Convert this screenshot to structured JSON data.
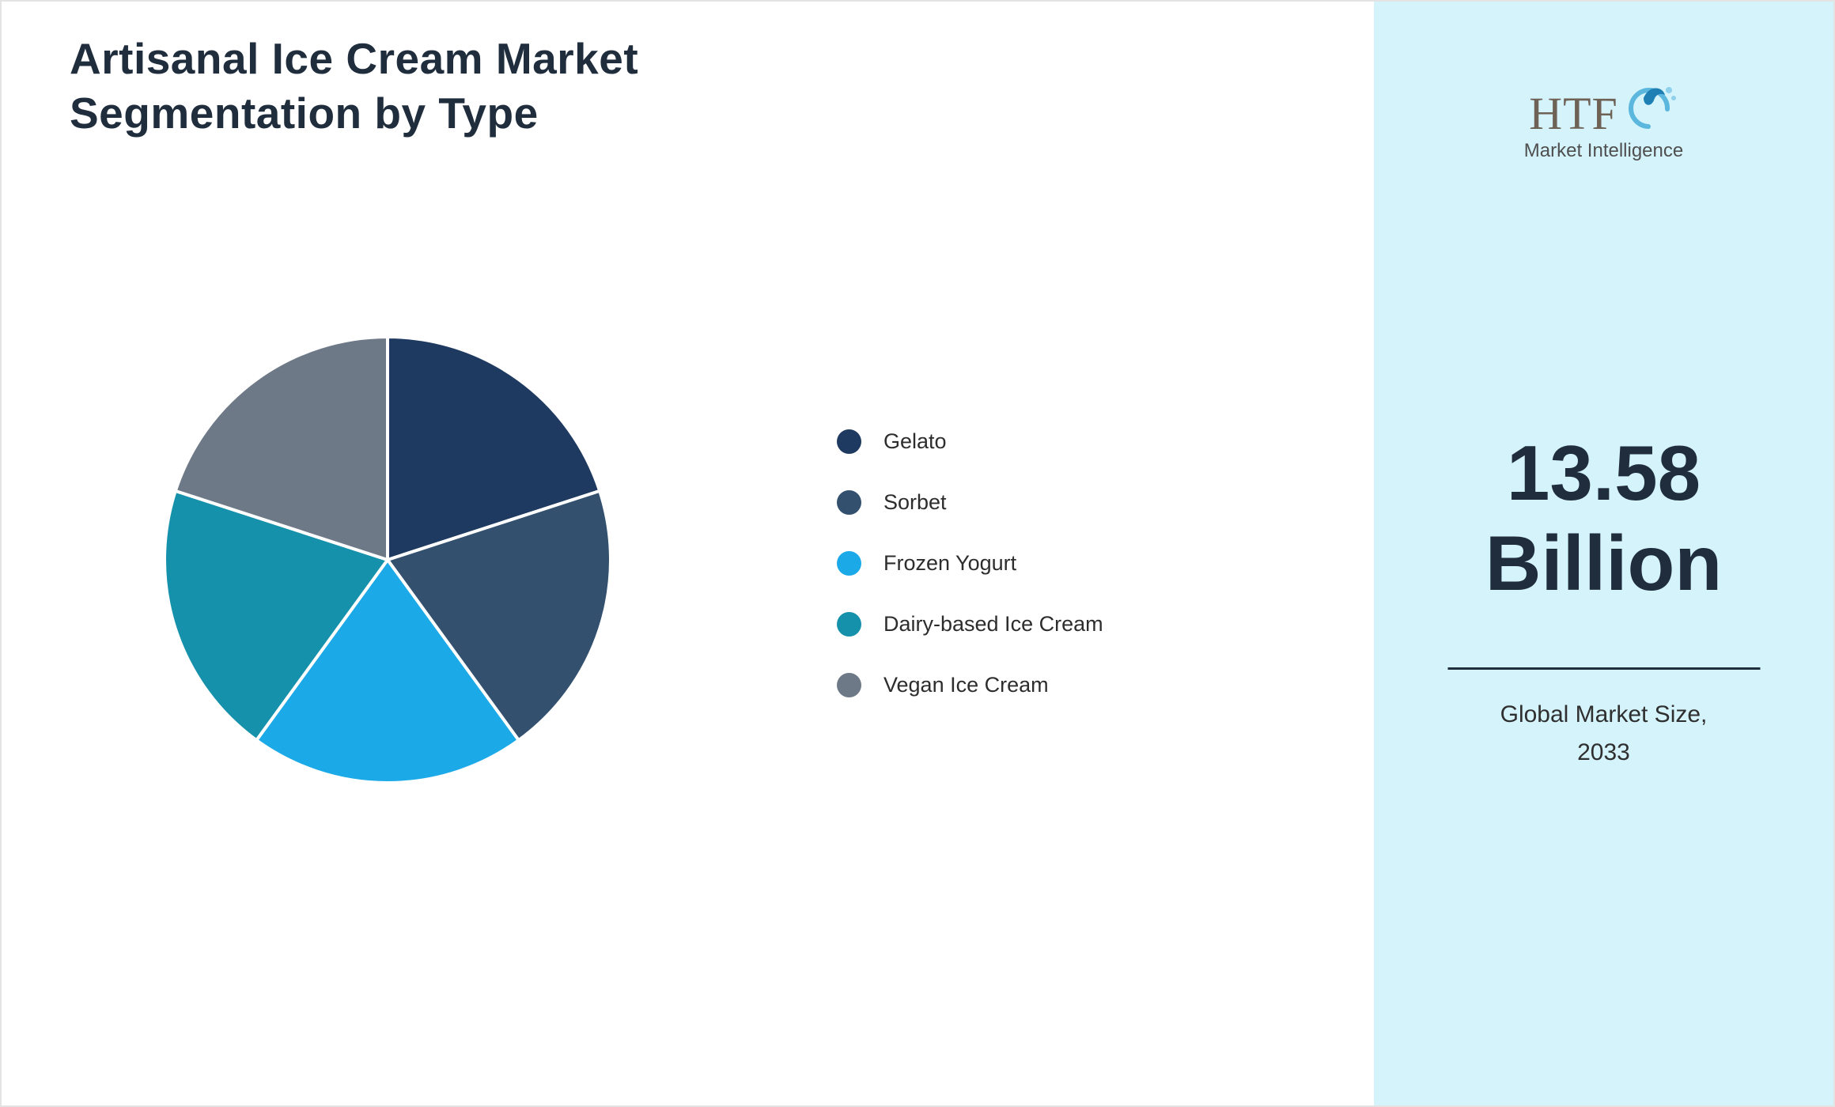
{
  "page": {
    "background": "#ffffff",
    "border_color": "#e3e3e3"
  },
  "title": {
    "line1": "Artisanal Ice Cream Market",
    "line2": "Segmentation by Type",
    "color": "#1f2d3d"
  },
  "chart_data": {
    "type": "pie",
    "title": "Artisanal Ice Cream Market Segmentation by Type",
    "categories": [
      "Gelato",
      "Sorbet",
      "Frozen Yogurt",
      "Dairy-based Ice Cream",
      "Vegan Ice Cream"
    ],
    "values": [
      20,
      20,
      20,
      20,
      20
    ],
    "colors": [
      "#1f3a60",
      "#33506e",
      "#1ca9e8",
      "#1591ac",
      "#6e7987"
    ],
    "start_angle_deg": 0,
    "direction": "clockwise",
    "legend_position": "right",
    "slice_gap_color": "#ffffff"
  },
  "sidebar": {
    "background": "#d5f3fb",
    "logo": {
      "text": "HTF",
      "subtext": "Market Intelligence"
    },
    "value_line1": "13.58",
    "value_line2": "Billion",
    "caption_line1": "Global Market Size,",
    "caption_line2": "2033"
  }
}
